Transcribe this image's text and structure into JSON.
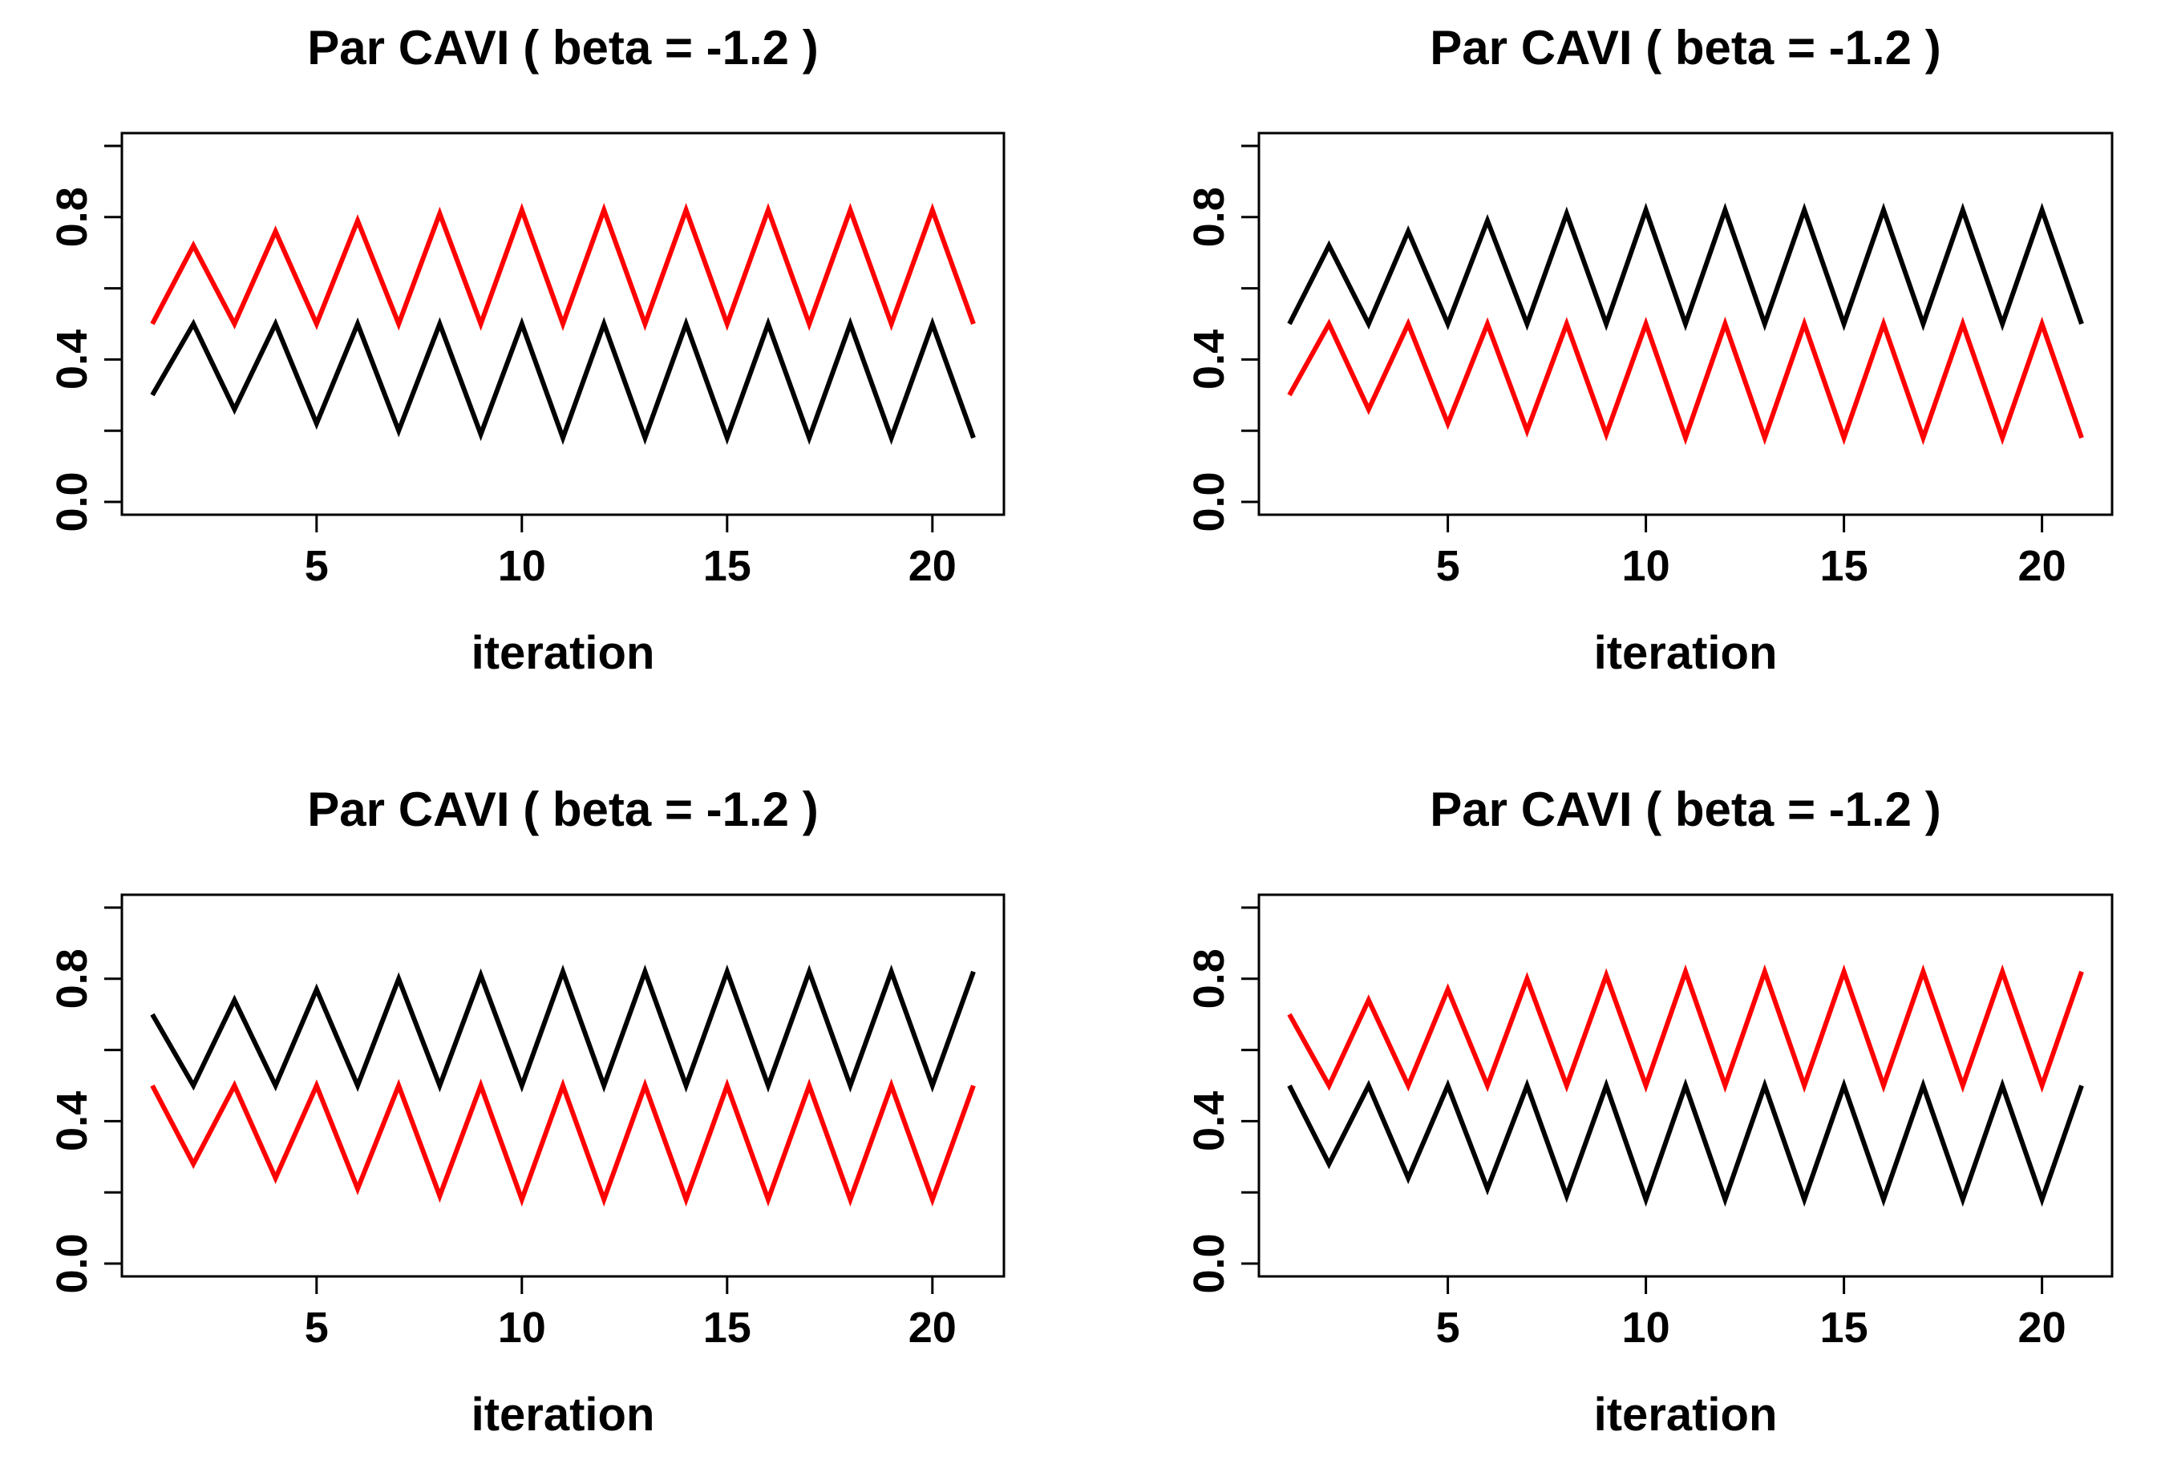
{
  "chart_data": [
    {
      "type": "line",
      "title": "Par CAVI ( beta =  -1.2 )",
      "xlabel": "iteration",
      "ylabel": "",
      "xlim": [
        1,
        21
      ],
      "ylim": [
        0,
        1
      ],
      "xticks": [
        5,
        10,
        15,
        20
      ],
      "yticks": [
        0.0,
        0.2,
        0.4,
        0.6,
        0.8,
        1.0
      ],
      "ytick_labels": [
        "0.0",
        "",
        "0.4",
        "",
        "0.8",
        ""
      ],
      "grid": false,
      "x": [
        1,
        2,
        3,
        4,
        5,
        6,
        7,
        8,
        9,
        10,
        11,
        12,
        13,
        14,
        15,
        16,
        17,
        18,
        19,
        20,
        21
      ],
      "series": [
        {
          "name": "black",
          "color": "#000000",
          "values": [
            0.3,
            0.5,
            0.26,
            0.5,
            0.22,
            0.5,
            0.2,
            0.5,
            0.19,
            0.5,
            0.18,
            0.5,
            0.18,
            0.5,
            0.18,
            0.5,
            0.18,
            0.5,
            0.18,
            0.5,
            0.18
          ]
        },
        {
          "name": "red",
          "color": "#ff0000",
          "values": [
            0.5,
            0.72,
            0.5,
            0.76,
            0.5,
            0.79,
            0.5,
            0.81,
            0.5,
            0.82,
            0.5,
            0.82,
            0.5,
            0.82,
            0.5,
            0.82,
            0.5,
            0.82,
            0.5,
            0.82,
            0.5
          ]
        }
      ]
    },
    {
      "type": "line",
      "title": "Par CAVI ( beta =  -1.2 )",
      "xlabel": "iteration",
      "ylabel": "",
      "xlim": [
        1,
        21
      ],
      "ylim": [
        0,
        1
      ],
      "xticks": [
        5,
        10,
        15,
        20
      ],
      "yticks": [
        0.0,
        0.2,
        0.4,
        0.6,
        0.8,
        1.0
      ],
      "ytick_labels": [
        "0.0",
        "",
        "0.4",
        "",
        "0.8",
        ""
      ],
      "grid": false,
      "x": [
        1,
        2,
        3,
        4,
        5,
        6,
        7,
        8,
        9,
        10,
        11,
        12,
        13,
        14,
        15,
        16,
        17,
        18,
        19,
        20,
        21
      ],
      "series": [
        {
          "name": "black",
          "color": "#000000",
          "values": [
            0.5,
            0.72,
            0.5,
            0.76,
            0.5,
            0.79,
            0.5,
            0.81,
            0.5,
            0.82,
            0.5,
            0.82,
            0.5,
            0.82,
            0.5,
            0.82,
            0.5,
            0.82,
            0.5,
            0.82,
            0.5
          ]
        },
        {
          "name": "red",
          "color": "#ff0000",
          "values": [
            0.3,
            0.5,
            0.26,
            0.5,
            0.22,
            0.5,
            0.2,
            0.5,
            0.19,
            0.5,
            0.18,
            0.5,
            0.18,
            0.5,
            0.18,
            0.5,
            0.18,
            0.5,
            0.18,
            0.5,
            0.18
          ]
        }
      ]
    },
    {
      "type": "line",
      "title": "Par CAVI ( beta =  -1.2 )",
      "xlabel": "iteration",
      "ylabel": "",
      "xlim": [
        1,
        21
      ],
      "ylim": [
        0,
        1
      ],
      "xticks": [
        5,
        10,
        15,
        20
      ],
      "yticks": [
        0.0,
        0.2,
        0.4,
        0.6,
        0.8,
        1.0
      ],
      "ytick_labels": [
        "0.0",
        "",
        "0.4",
        "",
        "0.8",
        ""
      ],
      "grid": false,
      "x": [
        1,
        2,
        3,
        4,
        5,
        6,
        7,
        8,
        9,
        10,
        11,
        12,
        13,
        14,
        15,
        16,
        17,
        18,
        19,
        20,
        21
      ],
      "series": [
        {
          "name": "black",
          "color": "#000000",
          "values": [
            0.7,
            0.5,
            0.74,
            0.5,
            0.77,
            0.5,
            0.8,
            0.5,
            0.81,
            0.5,
            0.82,
            0.5,
            0.82,
            0.5,
            0.82,
            0.5,
            0.82,
            0.5,
            0.82,
            0.5,
            0.82
          ]
        },
        {
          "name": "red",
          "color": "#ff0000",
          "values": [
            0.5,
            0.28,
            0.5,
            0.24,
            0.5,
            0.21,
            0.5,
            0.19,
            0.5,
            0.18,
            0.5,
            0.18,
            0.5,
            0.18,
            0.5,
            0.18,
            0.5,
            0.18,
            0.5,
            0.18,
            0.5
          ]
        }
      ]
    },
    {
      "type": "line",
      "title": "Par CAVI ( beta =  -1.2 )",
      "xlabel": "iteration",
      "ylabel": "",
      "xlim": [
        1,
        21
      ],
      "ylim": [
        0,
        1
      ],
      "xticks": [
        5,
        10,
        15,
        20
      ],
      "yticks": [
        0.0,
        0.2,
        0.4,
        0.6,
        0.8,
        1.0
      ],
      "ytick_labels": [
        "0.0",
        "",
        "0.4",
        "",
        "0.8",
        ""
      ],
      "grid": false,
      "x": [
        1,
        2,
        3,
        4,
        5,
        6,
        7,
        8,
        9,
        10,
        11,
        12,
        13,
        14,
        15,
        16,
        17,
        18,
        19,
        20,
        21
      ],
      "series": [
        {
          "name": "black",
          "color": "#000000",
          "values": [
            0.5,
            0.28,
            0.5,
            0.24,
            0.5,
            0.21,
            0.5,
            0.19,
            0.5,
            0.18,
            0.5,
            0.18,
            0.5,
            0.18,
            0.5,
            0.18,
            0.5,
            0.18,
            0.5,
            0.18,
            0.5
          ]
        },
        {
          "name": "red",
          "color": "#ff0000",
          "values": [
            0.7,
            0.5,
            0.74,
            0.5,
            0.77,
            0.5,
            0.8,
            0.5,
            0.81,
            0.5,
            0.82,
            0.5,
            0.82,
            0.5,
            0.82,
            0.5,
            0.82,
            0.5,
            0.82,
            0.5,
            0.82
          ]
        }
      ]
    }
  ]
}
